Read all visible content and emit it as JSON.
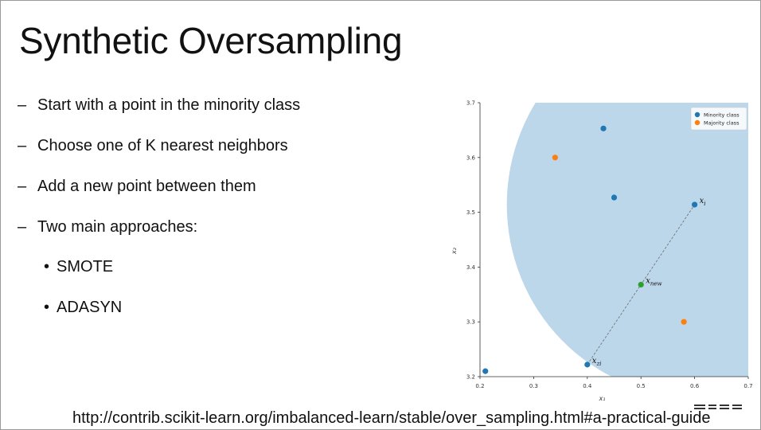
{
  "slide": {
    "title": "Synthetic Oversampling",
    "bullets": [
      {
        "marker": "–",
        "text": "Start with a point in the minority class",
        "level": 1
      },
      {
        "marker": "–",
        "text": "Choose one of K nearest neighbors",
        "level": 1
      },
      {
        "marker": "–",
        "text": "Add a new point between them",
        "level": 1
      },
      {
        "marker": "–",
        "text": "Two main approaches:",
        "level": 1
      },
      {
        "marker": "•",
        "text": "SMOTE",
        "level": 2
      },
      {
        "marker": "•",
        "text": "ADASYN",
        "level": 2
      }
    ],
    "url": "http://contrib.scikit-learn.org/imbalanced-learn/stable/over_sampling.html#a-practical-guide"
  },
  "chart_data": {
    "type": "scatter",
    "xlabel": "x₁",
    "ylabel": "x₂",
    "xlim": [
      0.2,
      0.7
    ],
    "ylim": [
      3.2,
      3.7
    ],
    "xticks": [
      "0.2",
      "0.3",
      "0.4",
      "0.5",
      "0.6",
      "0.7"
    ],
    "yticks": [
      "3.2",
      "3.3",
      "3.4",
      "3.5",
      "3.6",
      "3.7"
    ],
    "legend": {
      "placement": "top-right",
      "entries": [
        "Minority class",
        "Majority class"
      ]
    },
    "colors": {
      "minority": "#1f77b4",
      "majority": "#ff7f0e",
      "new": "#2ca02c",
      "region": "#bcd6ea",
      "line": "#777777"
    },
    "series": [
      {
        "name": "Minority class",
        "color": "#1f77b4",
        "points": [
          [
            0.43,
            3.653
          ],
          [
            0.45,
            3.527
          ],
          [
            0.6,
            3.514
          ],
          [
            0.4,
            3.222
          ],
          [
            0.21,
            3.21
          ]
        ]
      },
      {
        "name": "Majority class",
        "color": "#ff7f0e",
        "points": [
          [
            0.34,
            3.6
          ],
          [
            0.58,
            3.3
          ]
        ]
      }
    ],
    "synthetic_point": [
      0.5,
      3.368
    ],
    "segment": [
      [
        0.4,
        3.222
      ],
      [
        0.6,
        3.514
      ]
    ],
    "neighborhood": {
      "center": [
        0.6,
        3.514
      ],
      "radius": 0.35
    },
    "annotations": [
      {
        "text": "x",
        "sub": "i",
        "at": [
          0.6,
          3.514
        ]
      },
      {
        "text": "x",
        "sub": "new",
        "at": [
          0.5,
          3.368
        ]
      },
      {
        "text": "x",
        "sub": "zi",
        "at": [
          0.4,
          3.222
        ]
      }
    ]
  }
}
